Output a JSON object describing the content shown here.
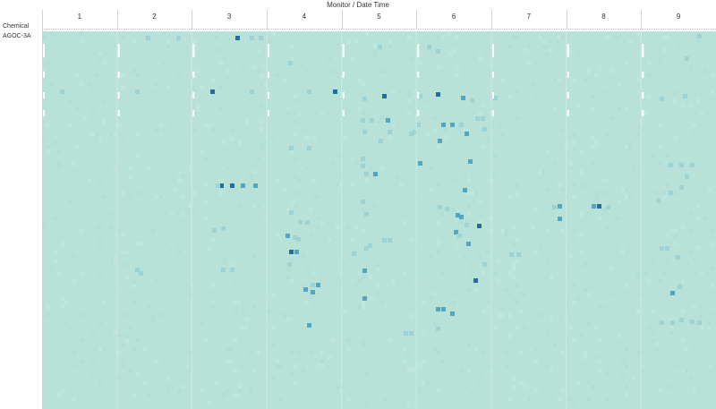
{
  "header": {
    "title": "Monitor  /  Date Time"
  },
  "row_header": {
    "label": "Chemical"
  },
  "colors": {
    "base": "#b8e2d8",
    "light": "#9ad4d6",
    "mid": "#4ba8c9",
    "dark": "#1f6fa5",
    "separator": "#ffffff"
  },
  "chart_data": {
    "type": "heatmap",
    "title": "",
    "column_field": "Monitor / Date Time",
    "row_field": "Chemical",
    "columns": [
      "1",
      "2",
      "3",
      "4",
      "5",
      "6",
      "7",
      "8",
      "9"
    ],
    "rows": [
      "AGOC-3A"
    ],
    "grid": false
  }
}
